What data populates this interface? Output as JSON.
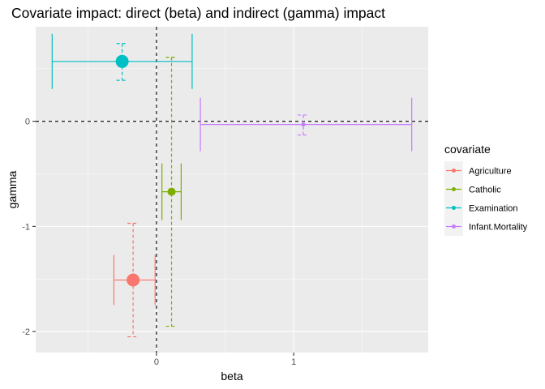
{
  "chart_data": {
    "type": "scatter",
    "title": "Covariate impact: direct (beta) and indirect (gamma) impact",
    "xlabel": "beta",
    "ylabel": "gamma",
    "xlim": [
      -0.88,
      1.98
    ],
    "ylim": [
      -2.2,
      0.9
    ],
    "x_ticks": [
      0,
      1
    ],
    "y_ticks": [
      0,
      -1,
      -2
    ],
    "legend": {
      "title": "covariate",
      "placement": "right"
    },
    "reference_lines": {
      "x": 0,
      "y": 0,
      "style": "dashed"
    },
    "series": [
      {
        "name": "Agriculture",
        "color": "#F8766D",
        "beta": -0.17,
        "gamma": -1.51,
        "beta_ci": [
          -0.31,
          -0.01
        ],
        "gamma_ci": [
          -2.05,
          -0.97
        ],
        "point_size": "large"
      },
      {
        "name": "Catholic",
        "color": "#7CAE00",
        "beta": 0.11,
        "gamma": -0.67,
        "beta_ci": [
          0.04,
          0.18
        ],
        "gamma_ci": [
          -1.95,
          0.61
        ],
        "point_size": "small"
      },
      {
        "name": "Examination",
        "color": "#00BFC4",
        "beta": -0.25,
        "gamma": 0.57,
        "beta_ci": [
          -0.76,
          0.26
        ],
        "gamma_ci": [
          0.39,
          0.74
        ],
        "point_size": "large"
      },
      {
        "name": "Infant.Mortality",
        "color": "#C77CFF",
        "beta": 1.07,
        "gamma": -0.03,
        "beta_ci": [
          0.32,
          1.86
        ],
        "gamma_ci": [
          -0.13,
          0.06
        ],
        "point_size": "tiny"
      }
    ]
  }
}
